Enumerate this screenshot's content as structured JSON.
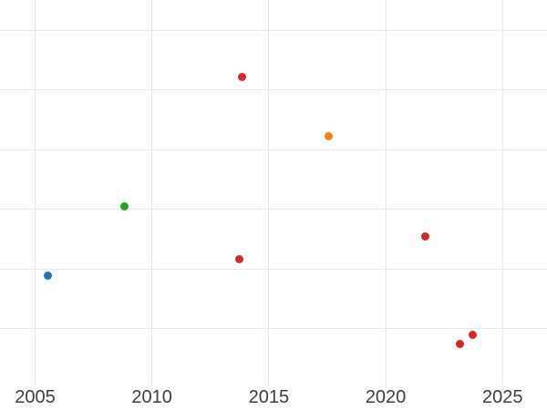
{
  "chart_data": {
    "type": "scatter",
    "title": "",
    "xlabel": "",
    "ylabel": "",
    "grid": true,
    "legend": false,
    "x_ticks": [
      {
        "value": 2005,
        "label": "2005"
      },
      {
        "value": 2010,
        "label": "2010"
      },
      {
        "value": 2015,
        "label": "2015"
      },
      {
        "value": 2020,
        "label": "2020"
      },
      {
        "value": 2025,
        "label": "2025"
      }
    ],
    "y_ticks": [
      {
        "value": 1,
        "label": ""
      },
      {
        "value": 2,
        "label": ""
      },
      {
        "value": 3,
        "label": ""
      },
      {
        "value": 4,
        "label": ""
      },
      {
        "value": 5,
        "label": ""
      },
      {
        "value": 6,
        "label": ""
      }
    ],
    "y_tick_labels_shown": false,
    "xlim": [
      2003.5,
      2026.9
    ],
    "ylim": [
      0.05,
      6.51
    ],
    "points": [
      {
        "x": 2005.53,
        "y": 1.89,
        "color_name": "blue"
      },
      {
        "x": 2008.84,
        "y": 3.05,
        "color_name": "green"
      },
      {
        "x": 2013.72,
        "y": 2.16,
        "color_name": "red"
      },
      {
        "x": 2013.87,
        "y": 5.22,
        "color_name": "red"
      },
      {
        "x": 2017.54,
        "y": 4.23,
        "color_name": "orange"
      },
      {
        "x": 2021.7,
        "y": 2.54,
        "color_name": "red"
      },
      {
        "x": 2023.18,
        "y": 0.75,
        "color_name": "red"
      },
      {
        "x": 2023.73,
        "y": 0.89,
        "color_name": "red"
      }
    ]
  },
  "colors": {
    "blue": "#1f77b4",
    "green": "#2ca02c",
    "orange": "#ff7f0e",
    "red": "#d62728",
    "gridline": "#e8e8e8",
    "tick_label": "#3d3d3d",
    "background": "#ffffff"
  }
}
